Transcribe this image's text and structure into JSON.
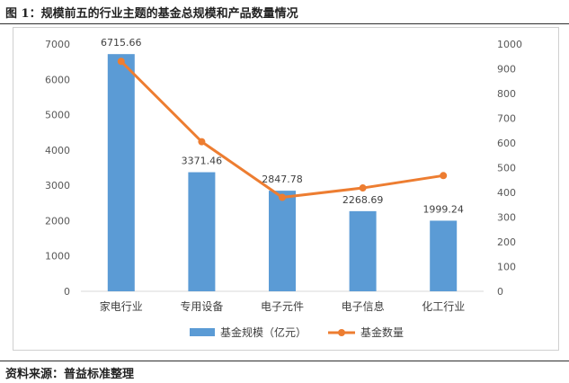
{
  "figure_title": "图 1：规模前五的行业主题的基金总规模和产品数量情况",
  "source_note": "资料来源：普益标准整理",
  "colors": {
    "bar": "#5b9bd5",
    "line": "#ed7d31",
    "axis": "#d9d9d9",
    "text": "#595959"
  },
  "chart_data": {
    "type": "bar",
    "categories": [
      "家电行业",
      "专用设备",
      "电子元件",
      "电子信息",
      "化工行业"
    ],
    "series": [
      {
        "name": "基金规模（亿元）",
        "type": "bar",
        "axis": "left",
        "values": [
          6715.66,
          3371.46,
          2847.78,
          2268.69,
          1999.24
        ],
        "labels": [
          "6715.66",
          "3371.46",
          "2847.78",
          "2268.69",
          "1999.24"
        ]
      },
      {
        "name": "基金数量",
        "type": "line",
        "axis": "right",
        "values": [
          930,
          605,
          380,
          418,
          468
        ]
      }
    ],
    "y_left": {
      "min": 0,
      "max": 7000,
      "ticks": [
        "0",
        "1000",
        "2000",
        "3000",
        "4000",
        "5000",
        "6000",
        "7000"
      ]
    },
    "y_right": {
      "min": 0,
      "max": 1000,
      "ticks": [
        "0",
        "100",
        "200",
        "300",
        "400",
        "500",
        "600",
        "700",
        "800",
        "900",
        "1000"
      ]
    },
    "grid": false,
    "legend": "bottom"
  }
}
